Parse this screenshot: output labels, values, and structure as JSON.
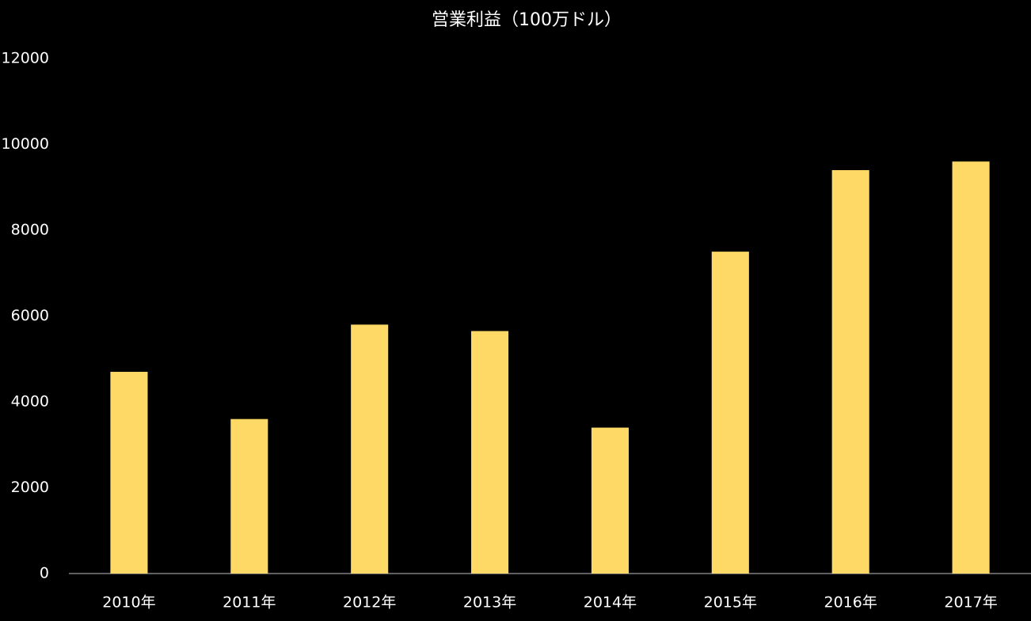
{
  "chart_data": {
    "type": "bar",
    "title": "営業利益（100万ドル）",
    "categories": [
      "2010年",
      "2011年",
      "2012年",
      "2013年",
      "2014年",
      "2015年",
      "2016年",
      "2017年"
    ],
    "values": [
      4700,
      3600,
      5800,
      5650,
      3400,
      7500,
      9400,
      9600
    ],
    "color": "#ffd966",
    "ylim": [
      0,
      12000
    ],
    "yticks": [
      0,
      2000,
      4000,
      6000,
      8000,
      10000,
      12000
    ],
    "grid": false
  }
}
